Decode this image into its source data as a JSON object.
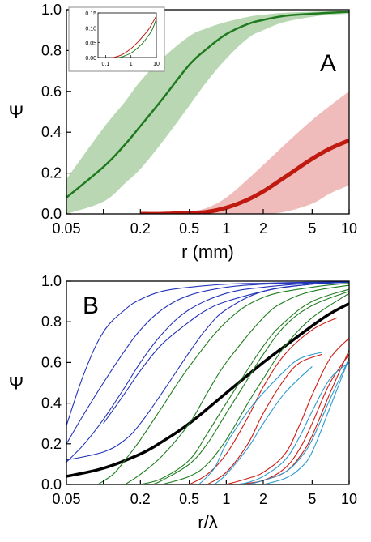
{
  "chart_data": [
    {
      "panel_label": "A",
      "type": "line",
      "xscale": "log",
      "xlim": [
        0.05,
        10
      ],
      "ylim": [
        0,
        1
      ],
      "xticks": [
        0.05,
        0.2,
        0.5,
        1,
        2,
        5,
        10
      ],
      "xtick_labels": [
        "0.05",
        "0.2",
        "0.5",
        "1",
        "2",
        "5",
        "10"
      ],
      "minor_xticks": [
        0.1
      ],
      "yticks": [
        0,
        0.2,
        0.4,
        0.6,
        0.8,
        1.0
      ],
      "ytick_labels": [
        "0.0",
        "0.2",
        "0.4",
        "0.6",
        "0.8",
        "1.0"
      ],
      "xlabel": "r (mm)",
      "ylabel": "Ψ",
      "series": [
        {
          "color": "#1f7a1f",
          "band_color": "#b9d7b3",
          "line_width": 2.5,
          "x": [
            0.05,
            0.1,
            0.15,
            0.2,
            0.3,
            0.5,
            0.7,
            1,
            1.5,
            2,
            3,
            5,
            7,
            10
          ],
          "y": [
            0.08,
            0.23,
            0.34,
            0.43,
            0.56,
            0.73,
            0.81,
            0.88,
            0.93,
            0.95,
            0.97,
            0.98,
            0.985,
            0.99
          ],
          "band_lower": [
            0.0,
            0.06,
            0.15,
            0.22,
            0.35,
            0.53,
            0.65,
            0.76,
            0.86,
            0.9,
            0.94,
            0.965,
            0.975,
            0.98
          ],
          "band_upper": [
            0.17,
            0.42,
            0.55,
            0.65,
            0.76,
            0.87,
            0.91,
            0.94,
            0.965,
            0.975,
            0.985,
            0.99,
            0.993,
            0.995
          ]
        },
        {
          "color": "#c01a10",
          "band_color": "#f0bcbb",
          "line_width": 5,
          "x": [
            0.2,
            0.3,
            0.5,
            0.7,
            1,
            1.5,
            2,
            3,
            5,
            7,
            10
          ],
          "y": [
            0.0,
            0.0,
            0.005,
            0.01,
            0.03,
            0.07,
            0.11,
            0.18,
            0.27,
            0.32,
            0.36
          ],
          "band_lower": [
            0.0,
            0.0,
            0.0,
            0.0,
            0.0,
            0.0,
            0.0,
            0.01,
            0.05,
            0.1,
            0.14
          ],
          "band_upper": [
            0.0,
            0.0,
            0.01,
            0.03,
            0.08,
            0.17,
            0.24,
            0.34,
            0.46,
            0.53,
            0.6
          ]
        }
      ],
      "inset": {
        "xscale": "log",
        "xlim": [
          0.05,
          10
        ],
        "ylim": [
          0,
          0.15
        ],
        "xticks": [
          0.1,
          1,
          10
        ],
        "xtick_labels": [
          "0.1",
          "1",
          "10"
        ],
        "yticks": [
          0,
          0.05,
          0.1,
          0.15
        ],
        "ytick_labels": [
          "0.00",
          "0.05",
          "0.10",
          "0.15"
        ],
        "series": [
          {
            "color": "#c01a10",
            "x": [
              0.2,
              0.3,
              0.5,
              1,
              2,
              3,
              5,
              10
            ],
            "y": [
              0.0,
              0.004,
              0.012,
              0.03,
              0.055,
              0.072,
              0.095,
              0.14
            ]
          },
          {
            "color": "#1f7a1f",
            "x": [
              0.35,
              0.5,
              1,
              2,
              3,
              5,
              7,
              10
            ],
            "y": [
              0.0,
              0.004,
              0.015,
              0.035,
              0.05,
              0.075,
              0.095,
              0.13
            ]
          }
        ]
      }
    },
    {
      "panel_label": "B",
      "type": "line",
      "xscale": "log",
      "xlim": [
        0.05,
        10
      ],
      "ylim": [
        0,
        1
      ],
      "xticks": [
        0.05,
        0.2,
        0.5,
        1,
        2,
        5,
        10
      ],
      "xtick_labels": [
        "0.05",
        "0.2",
        "0.5",
        "1",
        "2",
        "5",
        "10"
      ],
      "minor_xticks": [
        0.1
      ],
      "yticks": [
        0,
        0.2,
        0.4,
        0.6,
        0.8,
        1.0
      ],
      "ytick_labels": [
        "0.0",
        "0.2",
        "0.4",
        "0.6",
        "0.8",
        "1.0"
      ],
      "xlabel": "r/λ",
      "ylabel": "Ψ",
      "series": [
        {
          "color": "#000000",
          "line_width": 3.5,
          "x": [
            0.05,
            0.1,
            0.2,
            0.3,
            0.5,
            1,
            2,
            3,
            5,
            7,
            10
          ],
          "y": [
            0.04,
            0.08,
            0.15,
            0.21,
            0.3,
            0.45,
            0.6,
            0.68,
            0.78,
            0.84,
            0.89
          ]
        },
        {
          "color": "#2233bb",
          "x": [
            0.05,
            0.07,
            0.1,
            0.15,
            0.2,
            0.3,
            0.5,
            1,
            2,
            5,
            10
          ],
          "y": [
            0.29,
            0.55,
            0.75,
            0.86,
            0.91,
            0.95,
            0.97,
            0.985,
            0.99,
            0.995,
            0.997
          ]
        },
        {
          "color": "#2233bb",
          "x": [
            0.05,
            0.07,
            0.1,
            0.15,
            0.2,
            0.3,
            0.5,
            1,
            2,
            5,
            10
          ],
          "y": [
            0.2,
            0.35,
            0.5,
            0.66,
            0.76,
            0.86,
            0.93,
            0.97,
            0.985,
            0.993,
            0.996
          ]
        },
        {
          "color": "#2233bb",
          "x": [
            0.05,
            0.07,
            0.1,
            0.15,
            0.2,
            0.3,
            0.5,
            1,
            2,
            5,
            10
          ],
          "y": [
            0.11,
            0.2,
            0.32,
            0.48,
            0.6,
            0.74,
            0.86,
            0.94,
            0.97,
            0.99,
            0.995
          ]
        },
        {
          "color": "#2233bb",
          "x": [
            0.05,
            0.1,
            0.15,
            0.2,
            0.3,
            0.5,
            0.7,
            1,
            2,
            5,
            10
          ],
          "y": [
            0.12,
            0.16,
            0.22,
            0.3,
            0.45,
            0.65,
            0.77,
            0.86,
            0.95,
            0.985,
            0.995
          ]
        },
        {
          "color": "#2233bb",
          "x": [
            0.1,
            0.15,
            0.2,
            0.3,
            0.5,
            0.7,
            1,
            2,
            3,
            5,
            10
          ],
          "y": [
            0.3,
            0.45,
            0.56,
            0.69,
            0.8,
            0.86,
            0.9,
            0.95,
            0.97,
            0.985,
            0.995
          ]
        },
        {
          "color": "#1e7d1e",
          "x": [
            0.09,
            0.12,
            0.15,
            0.2,
            0.3,
            0.5,
            1,
            2,
            5,
            10
          ],
          "y": [
            0.0,
            0.05,
            0.12,
            0.22,
            0.38,
            0.58,
            0.8,
            0.92,
            0.97,
            0.99
          ]
        },
        {
          "color": "#1e7d1e",
          "x": [
            0.15,
            0.2,
            0.3,
            0.5,
            0.7,
            1,
            2,
            3,
            5,
            10
          ],
          "y": [
            0.0,
            0.05,
            0.14,
            0.3,
            0.45,
            0.6,
            0.82,
            0.9,
            0.95,
            0.98
          ]
        },
        {
          "color": "#1e7d1e",
          "x": [
            0.25,
            0.3,
            0.5,
            0.7,
            1,
            1.5,
            2,
            3,
            5,
            10
          ],
          "y": [
            0.0,
            0.02,
            0.1,
            0.2,
            0.35,
            0.52,
            0.64,
            0.78,
            0.88,
            0.95
          ]
        },
        {
          "color": "#1e7d1e",
          "x": [
            0.3,
            0.5,
            0.7,
            1,
            1.5,
            2,
            3,
            5,
            10
          ],
          "y": [
            0.0,
            0.04,
            0.1,
            0.22,
            0.4,
            0.52,
            0.68,
            0.82,
            0.94
          ]
        },
        {
          "color": "#1e7d1e",
          "x": [
            0.2,
            0.3,
            0.5,
            0.7,
            1,
            2,
            3,
            5,
            10
          ],
          "y": [
            0.0,
            0.03,
            0.12,
            0.25,
            0.4,
            0.68,
            0.8,
            0.9,
            0.96
          ]
        },
        {
          "color": "#cc1a10",
          "x": [
            0.5,
            0.7,
            1,
            1.5,
            2,
            3,
            5,
            8
          ],
          "y": [
            0.0,
            0.05,
            0.15,
            0.33,
            0.48,
            0.64,
            0.76,
            0.82
          ]
        },
        {
          "color": "#cc1a10",
          "x": [
            0.7,
            1,
            1.5,
            2,
            3,
            4,
            6
          ],
          "y": [
            0.0,
            0.06,
            0.2,
            0.35,
            0.52,
            0.6,
            0.64
          ]
        },
        {
          "color": "#cc1a10",
          "x": [
            1,
            1.5,
            2,
            3,
            4,
            5,
            7,
            10
          ],
          "y": [
            0.0,
            0.03,
            0.06,
            0.15,
            0.3,
            0.44,
            0.62,
            0.72
          ]
        },
        {
          "color": "#cc1a10",
          "x": [
            1.2,
            2,
            3,
            4,
            5,
            7,
            10
          ],
          "y": [
            0.0,
            0.02,
            0.08,
            0.18,
            0.3,
            0.5,
            0.64
          ]
        },
        {
          "color": "#cc1a10",
          "x": [
            1.5,
            2,
            3,
            4,
            5,
            7,
            10
          ],
          "y": [
            0.0,
            0.02,
            0.06,
            0.14,
            0.24,
            0.45,
            0.66
          ]
        },
        {
          "color": "#2b9ad0",
          "x": [
            0.6,
            0.8,
            1,
            1.5,
            2,
            3,
            4,
            6
          ],
          "y": [
            0.0,
            0.08,
            0.2,
            0.36,
            0.45,
            0.56,
            0.62,
            0.65
          ]
        },
        {
          "color": "#2b9ad0",
          "x": [
            0.8,
            1,
            1.5,
            2,
            3,
            5
          ],
          "y": [
            0.0,
            0.05,
            0.18,
            0.3,
            0.45,
            0.58
          ]
        },
        {
          "color": "#2b9ad0",
          "x": [
            1.2,
            1.5,
            2,
            3,
            4,
            5,
            7,
            10
          ],
          "y": [
            0.0,
            0.01,
            0.04,
            0.12,
            0.24,
            0.36,
            0.52,
            0.6
          ]
        },
        {
          "color": "#2b9ad0",
          "x": [
            1.5,
            2,
            3,
            4,
            5,
            7,
            10
          ],
          "y": [
            0.0,
            0.02,
            0.06,
            0.13,
            0.22,
            0.42,
            0.62
          ]
        },
        {
          "color": "#2b9ad0",
          "x": [
            2,
            3,
            4,
            5,
            7,
            10
          ],
          "y": [
            0.0,
            0.03,
            0.08,
            0.16,
            0.38,
            0.62
          ]
        }
      ]
    }
  ]
}
